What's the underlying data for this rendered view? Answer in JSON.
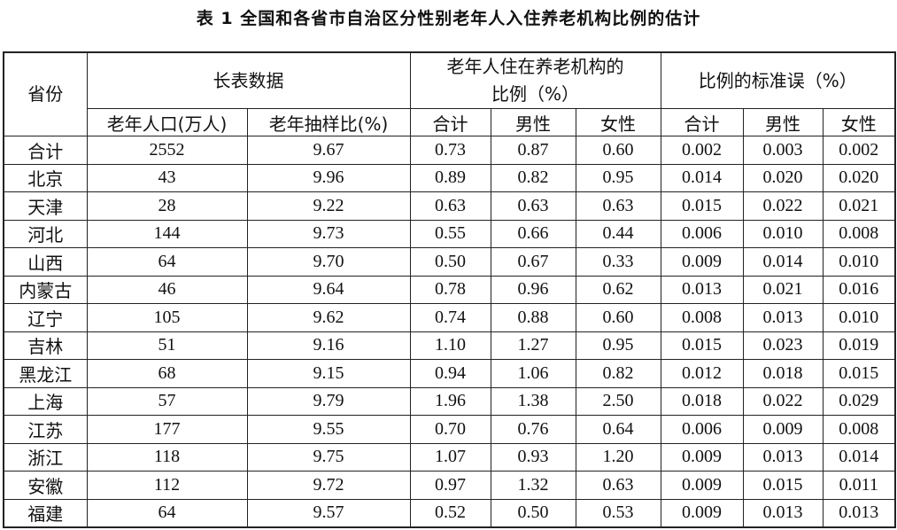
{
  "title": "表 1 全国和各省市自治区分性别老年人入住养老机构比例的估计",
  "table": {
    "header": {
      "province": "省份",
      "group1": "长表数据",
      "group2": "老年人住在养老机构的比例（%）",
      "group3": "比例的标准误（%）",
      "sub": [
        "老年人口(万人)",
        "老年抽样比(%)",
        "合计",
        "男性",
        "女性",
        "合计",
        "男性",
        "女性"
      ]
    },
    "rows": [
      [
        "合计",
        "2552",
        "9.67",
        "0.73",
        "0.87",
        "0.60",
        "0.002",
        "0.003",
        "0.002"
      ],
      [
        "北京",
        "43",
        "9.96",
        "0.89",
        "0.82",
        "0.95",
        "0.014",
        "0.020",
        "0.020"
      ],
      [
        "天津",
        "28",
        "9.22",
        "0.63",
        "0.63",
        "0.63",
        "0.015",
        "0.022",
        "0.021"
      ],
      [
        "河北",
        "144",
        "9.73",
        "0.55",
        "0.66",
        "0.44",
        "0.006",
        "0.010",
        "0.008"
      ],
      [
        "山西",
        "64",
        "9.70",
        "0.50",
        "0.67",
        "0.33",
        "0.009",
        "0.014",
        "0.010"
      ],
      [
        "内蒙古",
        "46",
        "9.64",
        "0.78",
        "0.96",
        "0.62",
        "0.013",
        "0.021",
        "0.016"
      ],
      [
        "辽宁",
        "105",
        "9.62",
        "0.74",
        "0.88",
        "0.60",
        "0.008",
        "0.013",
        "0.010"
      ],
      [
        "吉林",
        "51",
        "9.16",
        "1.10",
        "1.27",
        "0.95",
        "0.015",
        "0.023",
        "0.019"
      ],
      [
        "黑龙江",
        "68",
        "9.15",
        "0.94",
        "1.06",
        "0.82",
        "0.012",
        "0.018",
        "0.015"
      ],
      [
        "上海",
        "57",
        "9.79",
        "1.96",
        "1.38",
        "2.50",
        "0.018",
        "0.022",
        "0.029"
      ],
      [
        "江苏",
        "177",
        "9.55",
        "0.70",
        "0.76",
        "0.64",
        "0.006",
        "0.009",
        "0.008"
      ],
      [
        "浙江",
        "118",
        "9.75",
        "1.07",
        "0.93",
        "1.20",
        "0.009",
        "0.013",
        "0.014"
      ],
      [
        "安徽",
        "112",
        "9.72",
        "0.97",
        "1.32",
        "0.63",
        "0.009",
        "0.015",
        "0.011"
      ],
      [
        "福建",
        "64",
        "9.57",
        "0.52",
        "0.50",
        "0.53",
        "0.009",
        "0.013",
        "0.013"
      ]
    ]
  }
}
